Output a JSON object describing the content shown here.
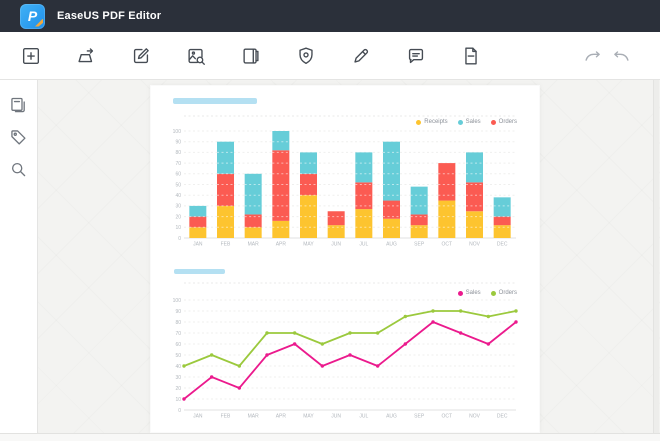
{
  "window": {
    "title": "EaseUS PDF Editor"
  },
  "titlebar": {
    "logo_letter": "P"
  },
  "toolbar": {
    "items": [
      "create",
      "convert",
      "edit",
      "ocr",
      "pages",
      "protect",
      "sign",
      "comment",
      "forms"
    ],
    "history": [
      "redo",
      "undo"
    ]
  },
  "sidebar": {
    "items": [
      "thumbnails",
      "bookmarks",
      "search"
    ]
  },
  "colors": {
    "titlebar_bg": "#2b303a",
    "logo_blue": "#2f9ff0",
    "logo_pencil": "#f2a73d",
    "toolbar_icon": "#464c54",
    "history_icon_disabled": "#a9aeb5",
    "sidebar_icon": "#70767e",
    "canvas_bg": "#f3f3f1",
    "page_bg": "#ffffff",
    "placeholder_blue": "#b4e0f2",
    "axis_text": "#b3b8be",
    "legend_text": "#8d929a",
    "gridline": "#efefee"
  },
  "chart_data": [
    {
      "type": "bar",
      "stacked": true,
      "categories": [
        "JAN",
        "FEB",
        "MAR",
        "APR",
        "MAY",
        "JUN",
        "JUL",
        "AUG",
        "SEP",
        "OCT",
        "NOV",
        "DEC"
      ],
      "series": [
        {
          "name": "Receipts",
          "color": "#fdc42f",
          "values": [
            10,
            30,
            10,
            16,
            40,
            12,
            27,
            18,
            12,
            35,
            25,
            12
          ]
        },
        {
          "name": "Orders",
          "color": "#fb5b52",
          "values": [
            10,
            30,
            12,
            66,
            20,
            13,
            25,
            17,
            10,
            35,
            27,
            8
          ]
        },
        {
          "name": "Sales",
          "color": "#66cdd8",
          "values": [
            10,
            30,
            38,
            18,
            20,
            0,
            28,
            55,
            26,
            0,
            28,
            18
          ]
        }
      ],
      "legend": [
        "Receipts",
        "Sales",
        "Orders"
      ],
      "legend_position": "top-right",
      "ylim": [
        0,
        100
      ],
      "yticks": [
        0,
        10,
        20,
        30,
        40,
        50,
        60,
        70,
        80,
        90,
        100
      ],
      "grid": "dashed"
    },
    {
      "type": "line",
      "categories": [
        "JAN",
        "FEB",
        "MAR",
        "APR",
        "MAY",
        "JUN",
        "JUL",
        "AUG",
        "SEP",
        "OCT",
        "NOV",
        "DEC"
      ],
      "points_between_labels": true,
      "series": [
        {
          "name": "Sales",
          "color": "#eb1a8d",
          "values": [
            10,
            30,
            20,
            50,
            60,
            40,
            50,
            40,
            60,
            80,
            70,
            60,
            80
          ]
        },
        {
          "name": "Orders",
          "color": "#9bc93d",
          "values": [
            40,
            50,
            40,
            70,
            70,
            60,
            70,
            70,
            85,
            90,
            90,
            85,
            90
          ]
        }
      ],
      "legend": [
        "Sales",
        "Orders"
      ],
      "legend_position": "top-right",
      "ylim": [
        0,
        100
      ],
      "yticks": [
        0,
        10,
        20,
        30,
        40,
        50,
        60,
        70,
        80,
        90,
        100
      ],
      "grid": "dashed"
    }
  ]
}
